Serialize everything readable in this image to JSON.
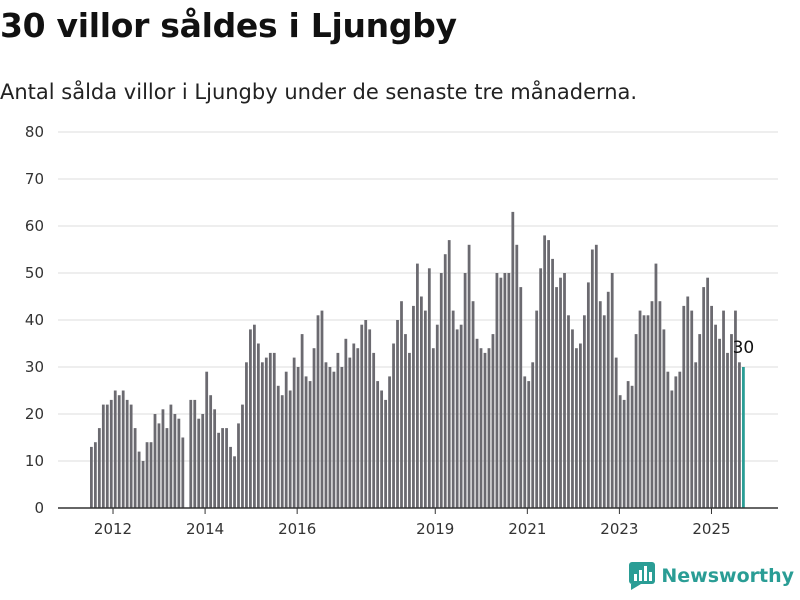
{
  "header": {
    "title": "30 villor såldes i Ljungby",
    "subtitle": "Antal sålda villor i Ljungby under de senaste tre månaderna."
  },
  "brand": {
    "name": "Newsworthy",
    "color": "#2a9d95"
  },
  "colors": {
    "bar": "#6b6a70",
    "highlight": "#2a9d95",
    "grid": "#dddddd"
  },
  "chart_data": {
    "type": "bar",
    "title": "",
    "xlabel": "",
    "ylabel": "",
    "ylim": [
      0,
      80
    ],
    "y_ticks": [
      "0",
      "10",
      "20",
      "30",
      "40",
      "50",
      "60",
      "70",
      "80"
    ],
    "x_ticks": [
      {
        "label": "2012",
        "at": 2012.0
      },
      {
        "label": "2014",
        "at": 2014.0
      },
      {
        "label": "2016",
        "at": 2016.0
      },
      {
        "label": "2019",
        "at": 2019.0
      },
      {
        "label": "2021",
        "at": 2021.0
      },
      {
        "label": "2023",
        "at": 2023.0
      },
      {
        "label": "2025",
        "at": 2025.0
      }
    ],
    "x_start": 2011.5,
    "x_end": 2025.75,
    "grid": true,
    "series": [
      {
        "values": [
          13,
          14,
          17,
          22,
          22,
          23,
          25,
          24,
          25,
          23,
          22,
          17,
          12,
          10,
          14,
          14,
          20,
          18,
          21,
          17,
          22,
          20,
          19,
          15,
          0,
          23,
          23,
          19,
          20,
          29,
          24,
          21,
          16,
          17,
          17,
          13,
          11,
          18,
          22,
          31,
          38,
          39,
          35,
          31,
          32,
          33,
          33,
          26,
          24,
          29,
          25,
          32,
          30,
          37,
          28,
          27,
          34,
          41,
          42,
          31,
          30,
          29,
          33,
          30,
          36,
          32,
          35,
          34,
          39,
          40,
          38,
          33,
          27,
          25,
          23,
          28,
          35,
          40,
          44,
          37,
          33,
          43,
          52,
          45,
          42,
          51,
          34,
          39,
          50,
          54,
          57,
          42,
          38,
          39,
          50,
          56,
          44,
          36,
          34,
          33,
          34,
          37,
          50,
          49,
          50,
          50,
          63,
          56,
          47,
          28,
          27,
          31,
          42,
          51,
          58,
          57,
          53,
          47,
          49,
          50,
          41,
          38,
          34,
          35,
          41,
          48,
          55,
          56,
          44,
          41,
          46,
          50,
          32,
          24,
          23,
          27,
          26,
          37,
          42,
          41,
          41,
          44,
          52,
          44,
          38,
          29,
          25,
          28,
          29,
          43,
          45,
          42,
          31,
          37,
          47,
          49,
          43,
          39,
          36,
          42,
          33,
          37,
          42,
          31,
          30
        ]
      }
    ],
    "annotations": [
      {
        "label": "30",
        "target": "last"
      }
    ]
  }
}
